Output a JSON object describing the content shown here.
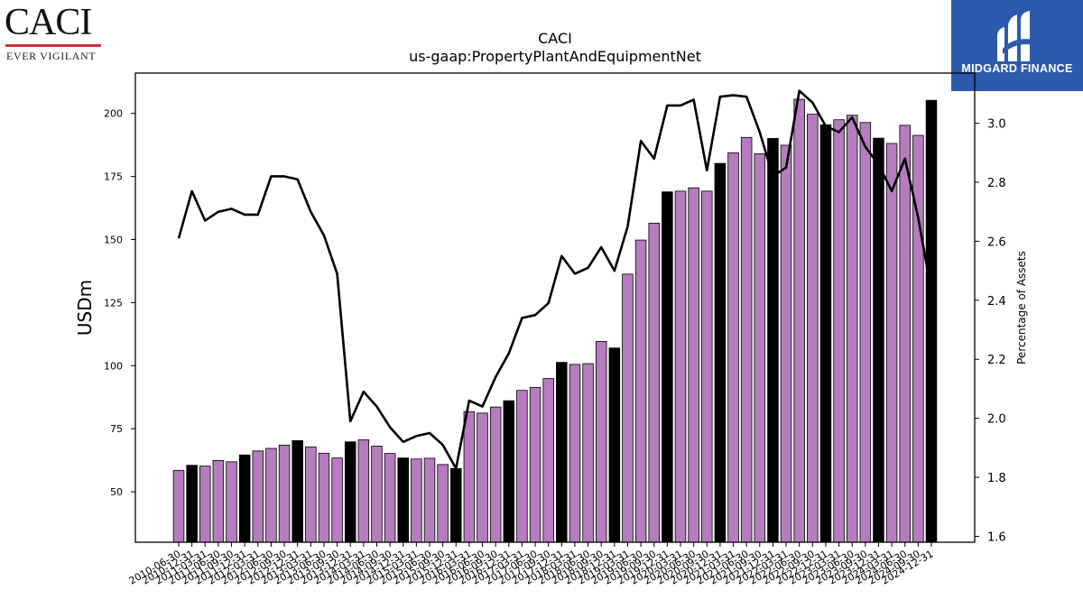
{
  "header": {
    "caci_logo_text": "CACI",
    "caci_tagline": "EVER VIGILANT",
    "caci_accent": "#d62b35",
    "midgard_text": "MIDGARD FINANCE",
    "midgard_color": "#2d5aac"
  },
  "chart_data": {
    "type": "bar",
    "title": "CACI",
    "subtitle": "us-gaap:PropertyPlantAndEquipmentNet",
    "ylabel": "USDm",
    "y2label": "Percentage of Assets",
    "ylim": [
      30,
      216
    ],
    "y2lim": [
      1.58,
      3.17
    ],
    "yticks": [
      50,
      75,
      100,
      125,
      150,
      175,
      200
    ],
    "y2ticks": [
      1.6,
      1.8,
      2.0,
      2.2,
      2.4,
      2.6,
      2.8,
      3.0
    ],
    "bar_color": "#b57cbe",
    "fiscal_year_end_color": "#000000",
    "line_color": "#000000",
    "categories": [
      "2010-06-30",
      "2010-12-31",
      "2011-03-31",
      "2011-06-30",
      "2011-09-30",
      "2011-12-31",
      "2012-03-31",
      "2012-06-30",
      "2012-09-30",
      "2012-12-31",
      "2013-03-31",
      "2013-06-30",
      "2013-09-30",
      "2013-12-31",
      "2014-03-31",
      "2014-06-30",
      "2014-09-30",
      "2014-12-31",
      "2015-03-31",
      "2015-06-30",
      "2015-09-30",
      "2015-12-31",
      "2016-03-31",
      "2016-06-30",
      "2016-09-30",
      "2016-12-31",
      "2017-03-31",
      "2017-06-30",
      "2017-09-30",
      "2017-12-31",
      "2018-03-31",
      "2018-06-30",
      "2018-09-30",
      "2018-12-31",
      "2019-03-31",
      "2019-06-30",
      "2019-09-30",
      "2019-12-31",
      "2020-03-31",
      "2020-06-30",
      "2020-09-30",
      "2020-12-31",
      "2021-03-31",
      "2021-06-30",
      "2021-09-30",
      "2021-12-31",
      "2022-03-31",
      "2022-06-30",
      "2022-09-30",
      "2022-12-31",
      "2023-03-31",
      "2023-06-30",
      "2023-09-30",
      "2023-12-31",
      "2024-03-31",
      "2024-06-30",
      "2024-09-30",
      "2024-12-31"
    ],
    "values": [
      58.5,
      60.5,
      60.2,
      62.4,
      61.9,
      64.6,
      66.2,
      67.2,
      68.5,
      70.3,
      67.8,
      65.3,
      63.4,
      69.8,
      70.6,
      68.1,
      65.2,
      63.4,
      63.0,
      63.3,
      60.8,
      59.2,
      81.8,
      81.2,
      83.6,
      86.1,
      90.2,
      91.4,
      94.9,
      101.3,
      100.5,
      100.8,
      109.6,
      107.0,
      136.3,
      149.8,
      156.5,
      168.9,
      169.2,
      170.5,
      169.2,
      180.2,
      184.4,
      190.5,
      184.0,
      190.1,
      187.4,
      205.6,
      199.7,
      195.5,
      197.5,
      199.3,
      196.4,
      190.2,
      188.1,
      195.3,
      191.3,
      205.2
    ],
    "fiscal_year_end": [
      false,
      true,
      false,
      false,
      false,
      true,
      false,
      false,
      false,
      true,
      false,
      false,
      false,
      true,
      false,
      false,
      false,
      true,
      false,
      false,
      false,
      true,
      false,
      false,
      false,
      true,
      false,
      false,
      false,
      true,
      false,
      false,
      false,
      true,
      false,
      false,
      false,
      true,
      false,
      false,
      false,
      true,
      false,
      false,
      false,
      true,
      false,
      false,
      false,
      true,
      false,
      false,
      false,
      true,
      false,
      false,
      false,
      true
    ],
    "line_series": {
      "values": [
        2.61,
        2.77,
        2.67,
        2.7,
        2.71,
        2.69,
        2.69,
        2.82,
        2.82,
        2.81,
        2.7,
        2.62,
        2.49,
        1.99,
        2.09,
        2.04,
        1.97,
        1.92,
        1.94,
        1.95,
        1.91,
        1.83,
        2.06,
        2.04,
        2.14,
        2.22,
        2.34,
        2.35,
        2.39,
        2.55,
        2.49,
        2.51,
        2.58,
        2.5,
        2.65,
        2.94,
        2.88,
        3.06,
        3.06,
        3.08,
        2.84,
        3.09,
        3.095,
        3.09,
        2.97,
        2.82,
        2.85,
        3.11,
        3.07,
        2.99,
        2.97,
        3.02,
        2.92,
        2.86,
        2.77,
        2.88,
        2.68,
        2.43
      ]
    }
  }
}
